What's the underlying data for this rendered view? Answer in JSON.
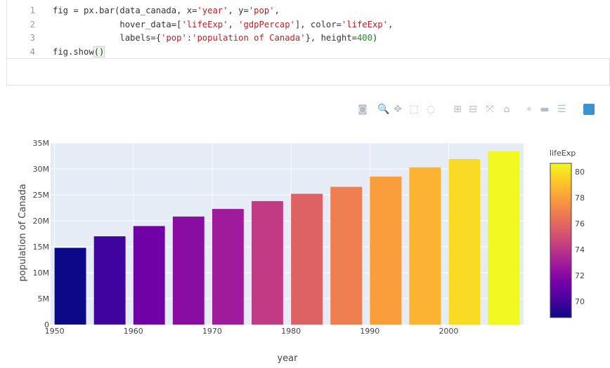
{
  "code": {
    "lines": [
      {
        "num": "1",
        "parts": [
          {
            "t": "fig = px.bar(data_canada, x=",
            "c": ""
          },
          {
            "t": "'year'",
            "c": "str"
          },
          {
            "t": ", y=",
            "c": ""
          },
          {
            "t": "'pop'",
            "c": "str"
          },
          {
            "t": ",",
            "c": ""
          }
        ]
      },
      {
        "num": "2",
        "parts": [
          {
            "t": "             hover_data=[",
            "c": ""
          },
          {
            "t": "'lifeExp'",
            "c": "str"
          },
          {
            "t": ", ",
            "c": ""
          },
          {
            "t": "'gdpPercap'",
            "c": "str"
          },
          {
            "t": "], color=",
            "c": ""
          },
          {
            "t": "'lifeExp'",
            "c": "str"
          },
          {
            "t": ",",
            "c": ""
          }
        ]
      },
      {
        "num": "3",
        "parts": [
          {
            "t": "             labels={",
            "c": ""
          },
          {
            "t": "'pop'",
            "c": "str"
          },
          {
            "t": ":",
            "c": ""
          },
          {
            "t": "'population of Canada'",
            "c": "str"
          },
          {
            "t": "}, height=",
            "c": ""
          },
          {
            "t": "400",
            "c": "num"
          },
          {
            "t": ")",
            "c": ""
          }
        ]
      },
      {
        "num": "4",
        "parts": [
          {
            "t": "fig.show",
            "c": ""
          },
          {
            "t": "()",
            "c": "cursor"
          }
        ]
      }
    ]
  },
  "modebar": {
    "buttons": [
      {
        "icon": "camera-icon",
        "glyph": "◙",
        "active": false
      },
      {
        "icon": "zoom-icon",
        "glyph": "🔍",
        "active": true
      },
      {
        "icon": "pan-icon",
        "glyph": "✥",
        "active": false
      },
      {
        "icon": "box-select-icon",
        "glyph": "⬚",
        "active": false
      },
      {
        "icon": "lasso-select-icon",
        "glyph": "◌",
        "active": false
      },
      {
        "icon": "zoom-in-icon",
        "glyph": "⊞",
        "active": false
      },
      {
        "icon": "zoom-out-icon",
        "glyph": "⊟",
        "active": false
      },
      {
        "icon": "autoscale-icon",
        "glyph": "⤧",
        "active": false
      },
      {
        "icon": "reset-axes-icon",
        "glyph": "⌂",
        "active": false
      },
      {
        "icon": "spike-lines-icon",
        "glyph": "⌖",
        "active": false
      },
      {
        "icon": "hover-closest-icon",
        "glyph": "▬",
        "active": false
      },
      {
        "icon": "hover-compare-icon",
        "glyph": "☰",
        "active": false
      }
    ]
  },
  "chart_data": {
    "type": "bar",
    "x": [
      1952,
      1957,
      1962,
      1967,
      1972,
      1977,
      1982,
      1987,
      1992,
      1997,
      2002,
      2007
    ],
    "values": [
      14785584,
      17010154,
      18985849,
      20819767,
      22284500,
      23796400,
      25201900,
      26549700,
      28523502,
      30305843,
      31902268,
      33390141
    ],
    "color_values": [
      68.75,
      69.96,
      71.3,
      72.13,
      72.88,
      74.21,
      75.76,
      76.86,
      77.95,
      78.61,
      79.77,
      80.653
    ],
    "xlabel": "year",
    "ylabel": "population of Canada",
    "x_ticks": [
      1950,
      1960,
      1970,
      1980,
      1990,
      2000
    ],
    "y_ticks": [
      0,
      5000000,
      10000000,
      15000000,
      20000000,
      25000000,
      30000000,
      35000000
    ],
    "y_tick_labels": [
      "0",
      "5M",
      "10M",
      "15M",
      "20M",
      "25M",
      "30M",
      "35M"
    ],
    "xlim": [
      1949.5,
      2009.5
    ],
    "ylim": [
      0,
      35000000
    ],
    "colorbar": {
      "title": "lifeExp",
      "range": [
        68.75,
        80.653
      ],
      "ticks": [
        70,
        72,
        74,
        76,
        78,
        80
      ],
      "tick_labels": [
        "70",
        "72",
        "74",
        "76",
        "78",
        "80"
      ],
      "colorscale": [
        "#0d0887",
        "#46039f",
        "#7201a8",
        "#9c179e",
        "#bd3786",
        "#d8576b",
        "#ed7953",
        "#fb9f3a",
        "#fdca26",
        "#f0f921"
      ]
    },
    "plot_bg": "#e5ecf6",
    "grid": true
  }
}
